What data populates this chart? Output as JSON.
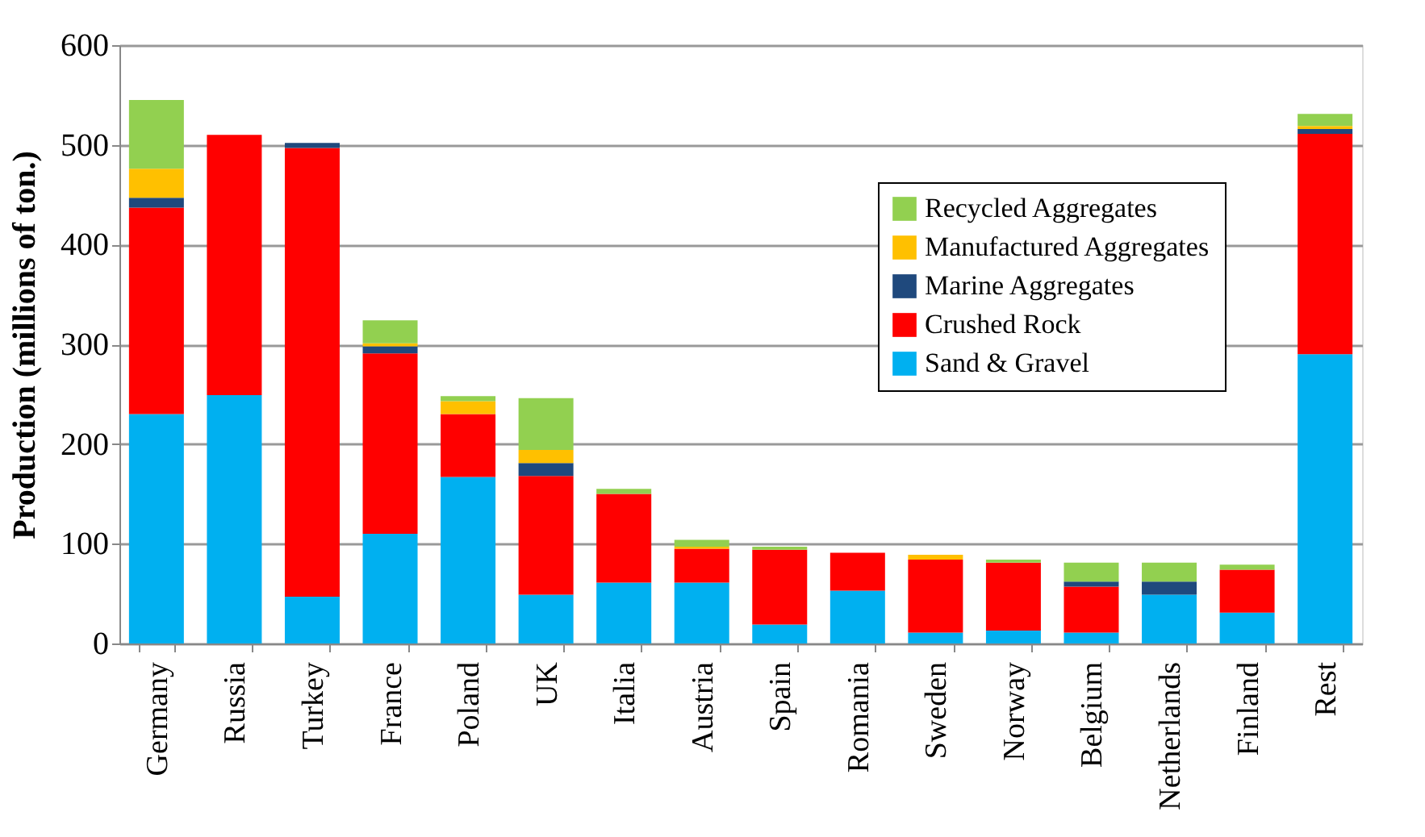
{
  "chart_data": {
    "type": "bar",
    "stacked": true,
    "ylabel": "Production (millions of ton.)",
    "categories": [
      "Germany",
      "Russia",
      "Turkey",
      "France",
      "Poland",
      "UK",
      "Italia",
      "Austria",
      "Spain",
      "Romania",
      "Sweden",
      "Norway",
      "Belgium",
      "Netherlands",
      "Finland",
      "Rest"
    ],
    "series": [
      {
        "name": "Sand & Gravel",
        "color": "#00b0f0",
        "values": [
          230,
          249,
          47,
          110,
          167,
          49,
          61,
          61,
          19,
          53,
          11,
          13,
          11,
          49,
          31,
          290
        ]
      },
      {
        "name": "Crushed Rock",
        "color": "#ff0000",
        "values": [
          207,
          261,
          450,
          181,
          63,
          119,
          89,
          34,
          75,
          38,
          73,
          68,
          46,
          0,
          43,
          221
        ]
      },
      {
        "name": "Marine Aggregates",
        "color": "#1f497d",
        "values": [
          10,
          0,
          5,
          7,
          0,
          13,
          0,
          0,
          0,
          0,
          0,
          0,
          5,
          13,
          0,
          5
        ]
      },
      {
        "name": "Manufactured Aggregates",
        "color": "#ffc000",
        "values": [
          29,
          0,
          0,
          3,
          13,
          13,
          0,
          2,
          0,
          0,
          5,
          0,
          0,
          0,
          0,
          3
        ]
      },
      {
        "name": "Recycled Aggregates",
        "color": "#92d050",
        "values": [
          69,
          0,
          0,
          23,
          5,
          52,
          5,
          7,
          3,
          0,
          0,
          3,
          19,
          19,
          5,
          12
        ]
      }
    ],
    "ylim": [
      0,
      600
    ],
    "yticks": [
      0,
      100,
      200,
      300,
      400,
      500,
      600
    ],
    "grid": "y",
    "legend": "top right"
  }
}
